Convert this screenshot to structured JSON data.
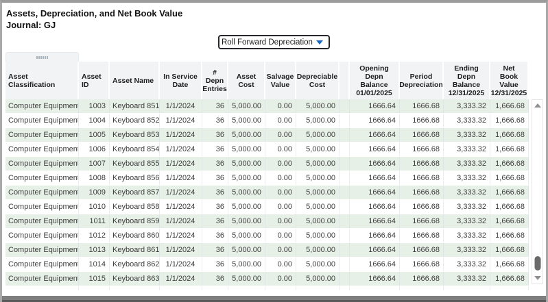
{
  "window": {
    "title": "Assets, Depreciation, and Net Book Value",
    "subtitle": "Journal: GJ"
  },
  "dropdown": {
    "selected": "Roll Forward Depreciation"
  },
  "icons": {
    "dropdown_arrow": "triangle-down-icon",
    "scrollbar_up": "triangle-up-icon",
    "scrollbar_down": "triangle-down-icon",
    "grip": "drag-handle-dots-icon"
  },
  "colors": {
    "accent_blue": "#1566c0",
    "row_alt": "#e7f0e7",
    "header_bg": "#f2f3f5",
    "arrow_gray": "#8f8f8f",
    "scrollbar_thumb": "#696969",
    "bottom_bar": "#7e7e7e"
  },
  "table": {
    "columns": [
      {
        "id": "asset-classification",
        "label": "Asset\nClassification",
        "align": "left",
        "header_align": "left"
      },
      {
        "id": "asset-id",
        "label": "Asset ID",
        "align": "right",
        "header_align": "left"
      },
      {
        "id": "asset-name",
        "label": "Asset Name",
        "align": "left",
        "header_align": "left"
      },
      {
        "id": "in-service-date",
        "label": "In Service\nDate",
        "align": "center",
        "header_align": "center"
      },
      {
        "id": "depn-entries",
        "label": "#\nDepn\nEntries",
        "align": "right",
        "header_align": "center"
      },
      {
        "id": "asset-cost",
        "label": "Asset\nCost",
        "align": "right",
        "header_align": "center"
      },
      {
        "id": "salvage-value",
        "label": "Salvage\nValue",
        "align": "right",
        "header_align": "center"
      },
      {
        "id": "depreciable-cost",
        "label": "Depreciable\nCost",
        "align": "right",
        "header_align": "center"
      },
      {
        "id": "spacer",
        "label": "",
        "align": "left",
        "header_align": "center"
      },
      {
        "id": "opening-depn-balance",
        "label": "Opening\nDepn\nBalance\n01/01/2025",
        "align": "right",
        "header_align": "center"
      },
      {
        "id": "period-depreciation",
        "label": "Period\nDepreciation",
        "align": "right",
        "header_align": "center"
      },
      {
        "id": "ending-depn-balance",
        "label": "Ending\nDepn\nBalance\n12/31/2025",
        "align": "right",
        "header_align": "center"
      },
      {
        "id": "net-book-value",
        "label": "Net\nBook Value\n12/31/2025",
        "align": "right",
        "header_align": "center"
      }
    ],
    "rows": [
      [
        "Computer Equipment",
        "1003",
        "Keyboard 851",
        "1/1/2024",
        "36",
        "5,000.00",
        "0.00",
        "5,000.00",
        "",
        "1666.64",
        "1666.68",
        "3,333.32",
        "1,666.68"
      ],
      [
        "Computer Equipment",
        "1004",
        "Keyboard 852",
        "1/1/2024",
        "36",
        "5,000.00",
        "0.00",
        "5,000.00",
        "",
        "1666.64",
        "1666.68",
        "3,333.32",
        "1,666.68"
      ],
      [
        "Computer Equipment",
        "1005",
        "Keyboard 853",
        "1/1/2024",
        "36",
        "5,000.00",
        "0.00",
        "5,000.00",
        "",
        "1666.64",
        "1666.68",
        "3,333.32",
        "1,666.68"
      ],
      [
        "Computer Equipment",
        "1006",
        "Keyboard 854",
        "1/1/2024",
        "36",
        "5,000.00",
        "0.00",
        "5,000.00",
        "",
        "1666.64",
        "1666.68",
        "3,333.32",
        "1,666.68"
      ],
      [
        "Computer Equipment",
        "1007",
        "Keyboard 855",
        "1/1/2024",
        "36",
        "5,000.00",
        "0.00",
        "5,000.00",
        "",
        "1666.64",
        "1666.68",
        "3,333.32",
        "1,666.68"
      ],
      [
        "Computer Equipment",
        "1008",
        "Keyboard 856",
        "1/1/2024",
        "36",
        "5,000.00",
        "0.00",
        "5,000.00",
        "",
        "1666.64",
        "1666.68",
        "3,333.32",
        "1,666.68"
      ],
      [
        "Computer Equipment",
        "1009",
        "Keyboard 857",
        "1/1/2024",
        "36",
        "5,000.00",
        "0.00",
        "5,000.00",
        "",
        "1666.64",
        "1666.68",
        "3,333.32",
        "1,666.68"
      ],
      [
        "Computer Equipment",
        "1010",
        "Keyboard 858",
        "1/1/2024",
        "36",
        "5,000.00",
        "0.00",
        "5,000.00",
        "",
        "1666.64",
        "1666.68",
        "3,333.32",
        "1,666.68"
      ],
      [
        "Computer Equipment",
        "1011",
        "Keyboard 859",
        "1/1/2024",
        "36",
        "5,000.00",
        "0.00",
        "5,000.00",
        "",
        "1666.64",
        "1666.68",
        "3,333.32",
        "1,666.68"
      ],
      [
        "Computer Equipment",
        "1012",
        "Keyboard 860",
        "1/1/2024",
        "36",
        "5,000.00",
        "0.00",
        "5,000.00",
        "",
        "1666.64",
        "1666.68",
        "3,333.32",
        "1,666.68"
      ],
      [
        "Computer Equipment",
        "1013",
        "Keyboard 861",
        "1/1/2024",
        "36",
        "5,000.00",
        "0.00",
        "5,000.00",
        "",
        "1666.64",
        "1666.68",
        "3,333.32",
        "1,666.68"
      ],
      [
        "Computer Equipment",
        "1014",
        "Keyboard 862",
        "1/1/2024",
        "36",
        "5,000.00",
        "0.00",
        "5,000.00",
        "",
        "1666.64",
        "1666.68",
        "3,333.32",
        "1,666.68"
      ],
      [
        "Computer Equipment",
        "1015",
        "Keyboard 863",
        "1/1/2024",
        "36",
        "5,000.00",
        "0.00",
        "5,000.00",
        "",
        "1666.64",
        "1666.68",
        "3,333.32",
        "1,666.68"
      ]
    ]
  }
}
